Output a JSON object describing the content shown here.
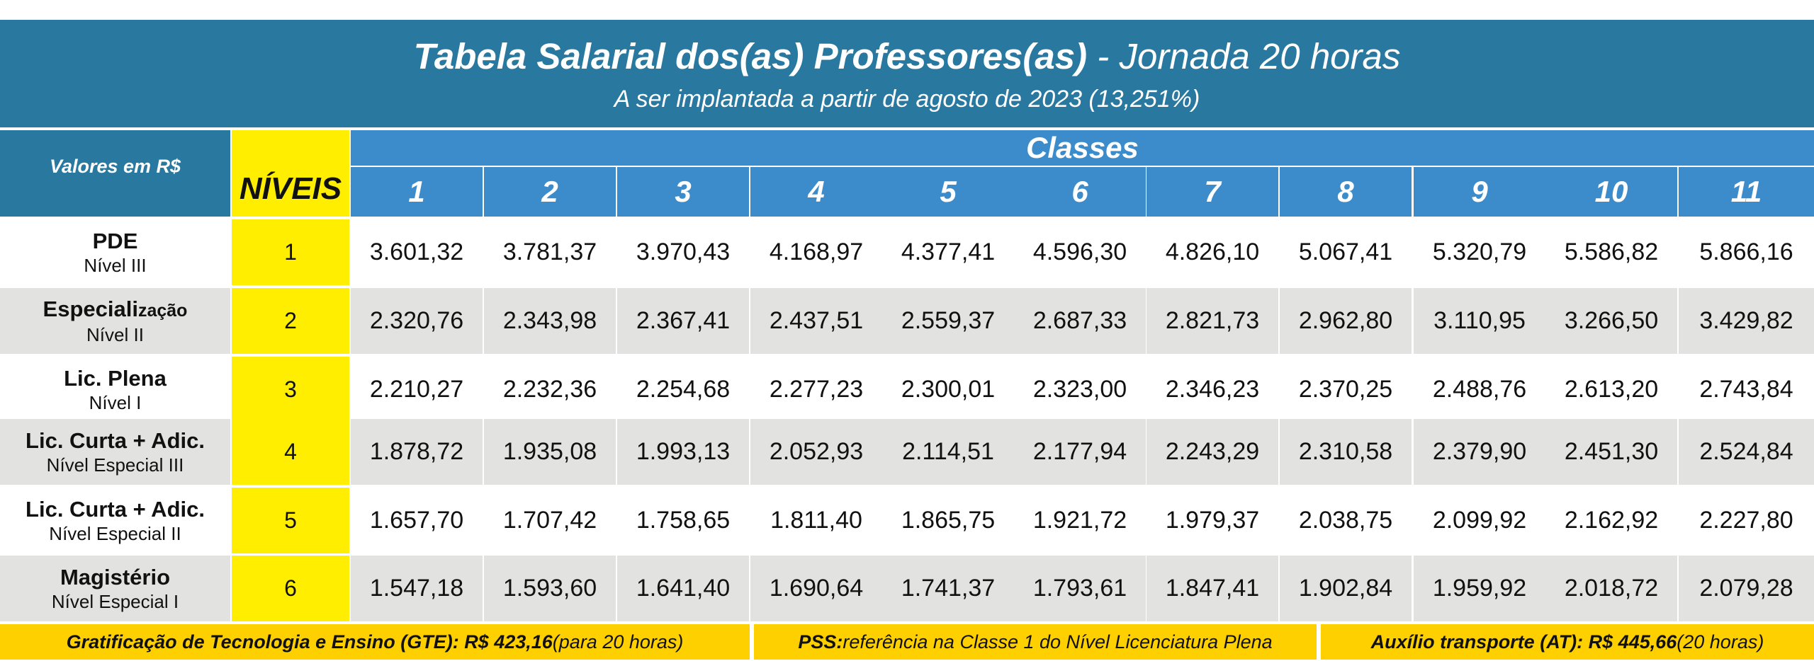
{
  "title": {
    "bold": "Tabela Salarial dos(as) Professores(as)",
    "rest": " - Jornada 20 horas",
    "subtitle": "A ser implantada a partir de agosto de 2023 (13,251%)"
  },
  "table": {
    "corner_label": "Valores em R$",
    "levels_header": "NÍVEIS",
    "classes_header": "Classes",
    "classes": [
      "1",
      "2",
      "3",
      "4",
      "5",
      "6",
      "7",
      "8",
      "9",
      "10",
      "11"
    ],
    "rows": [
      {
        "name_bold": "PDE",
        "name_small": "",
        "sub": "Nível III",
        "level": "1",
        "values": [
          "3.601,32",
          "3.781,37",
          "3.970,43",
          "4.168,97",
          "4.377,41",
          "4.596,30",
          "4.826,10",
          "5.067,41",
          "5.320,79",
          "5.586,82",
          "5.866,16"
        ]
      },
      {
        "name_bold": "Especiali",
        "name_small": "zação",
        "sub": "Nível II",
        "level": "2",
        "values": [
          "2.320,76",
          "2.343,98",
          "2.367,41",
          "2.437,51",
          "2.559,37",
          "2.687,33",
          "2.821,73",
          "2.962,80",
          "3.110,95",
          "3.266,50",
          "3.429,82"
        ]
      },
      {
        "name_bold": "Lic. Plena",
        "name_small": "",
        "sub": "Nível I",
        "level": "3",
        "values": [
          "2.210,27",
          "2.232,36",
          "2.254,68",
          "2.277,23",
          "2.300,01",
          "2.323,00",
          "2.346,23",
          "2.370,25",
          "2.488,76",
          "2.613,20",
          "2.743,84"
        ]
      },
      {
        "name_bold": "Lic. Curta + Adic.",
        "name_small": "",
        "sub": "Nível Especial III",
        "level": "4",
        "values": [
          "1.878,72",
          "1.935,08",
          "1.993,13",
          "2.052,93",
          "2.114,51",
          "2.177,94",
          "2.243,29",
          "2.310,58",
          "2.379,90",
          "2.451,30",
          "2.524,84"
        ]
      },
      {
        "name_bold": "Lic. Curta + Adic.",
        "name_small": "",
        "sub": "Nível Especial II",
        "level": "5",
        "values": [
          "1.657,70",
          "1.707,42",
          "1.758,65",
          "1.811,40",
          "1.865,75",
          "1.921,72",
          "1.979,37",
          "2.038,75",
          "2.099,92",
          "2.162,92",
          "2.227,80"
        ]
      },
      {
        "name_bold": "Magistério",
        "name_small": "",
        "sub": "Nível Especial I",
        "level": "6",
        "values": [
          "1.547,18",
          "1.593,60",
          "1.641,40",
          "1.690,64",
          "1.741,37",
          "1.793,61",
          "1.847,41",
          "1.902,84",
          "1.959,92",
          "2.018,72",
          "2.079,28"
        ]
      }
    ]
  },
  "footer": {
    "gte_bold": "Gratificação de Tecnologia e Ensino (GTE): R$ 423,16",
    "gte_rest": " (para 20 horas)",
    "pss_bold": "PSS:",
    "pss_rest": " referência na Classe 1 do Nível Licenciatura Plena",
    "at_bold": "Auxílio transporte (AT): R$ 445,66",
    "at_rest": " (20 horas)"
  },
  "colors": {
    "title_bg": "#2878a0",
    "class_header_bg": "#3c8ccc",
    "level_bg": "#ffee00",
    "footer_bg": "#ffd000",
    "row_gray": "#e2e2e0"
  }
}
